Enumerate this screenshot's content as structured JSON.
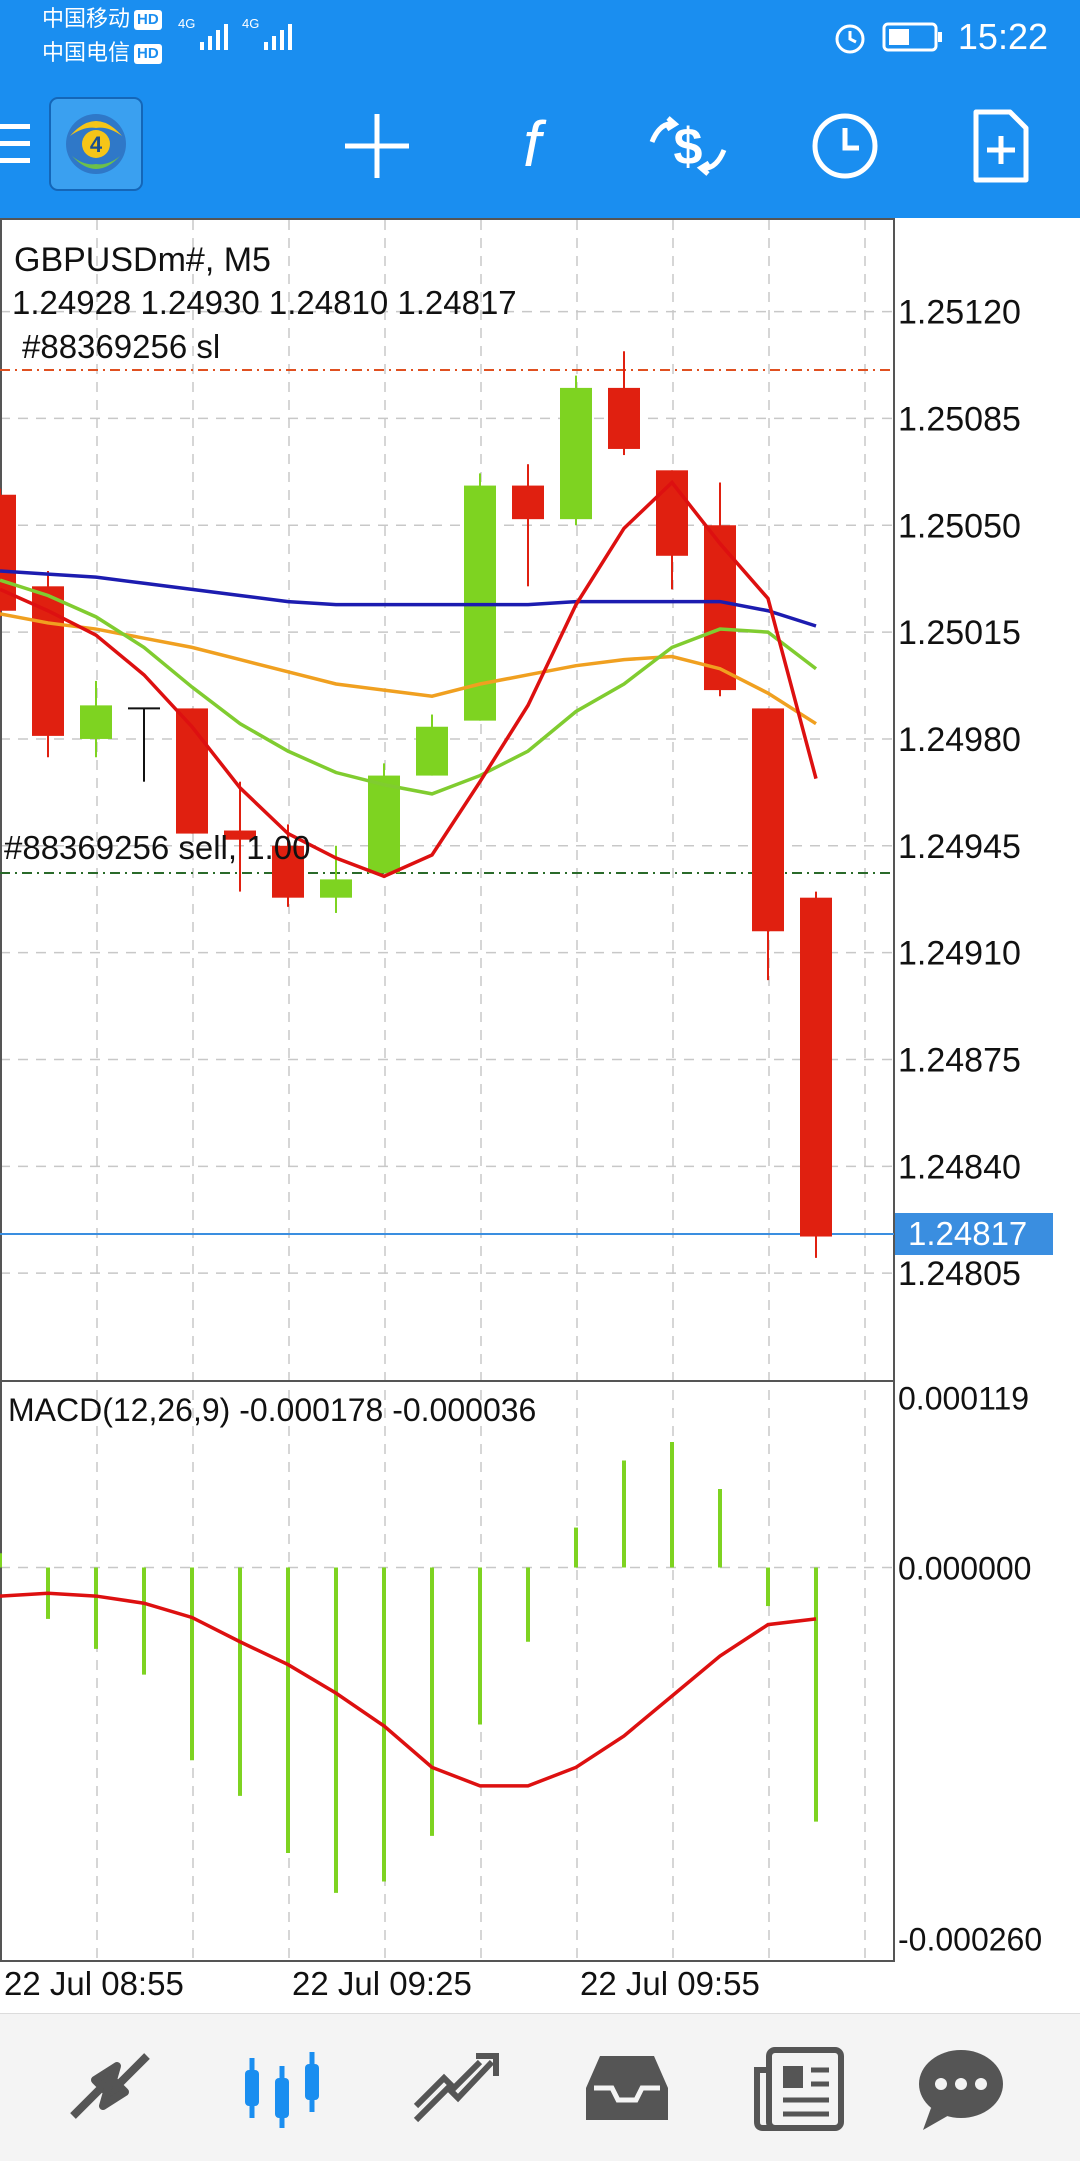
{
  "status_bar": {
    "carrier1": "中国移动",
    "carrier2": "中国电信",
    "hd_badge": "HD",
    "network": "4G",
    "time": "15:22"
  },
  "toolbar": {
    "icons": [
      "menu-icon",
      "metatrader-logo",
      "crosshair-icon",
      "indicators-icon",
      "trade-icon",
      "timeframe-icon",
      "new-order-icon"
    ]
  },
  "chart": {
    "symbol_title": "GBPUSDm#, M5",
    "ohlc": "1.24928 1.24930 1.24810 1.24817",
    "sl_label": "#88369256 sl",
    "order_label": "#88369256 sell, 1.00",
    "current_price": "1.24817",
    "price_ticks": [
      "1.25120",
      "1.25085",
      "1.25050",
      "1.25015",
      "1.24980",
      "1.24945",
      "1.24910",
      "1.24875",
      "1.24840",
      "1.24805"
    ],
    "macd_label": "MACD(12,26,9) -0.000178 -0.000036",
    "macd_ticks": [
      "0.000119",
      "0.000000",
      "-0.000260"
    ],
    "time_labels": [
      "22 Jul 08:55",
      "22 Jul 09:25",
      "22 Jul 09:55"
    ],
    "colors": {
      "bull": "#7ed321",
      "bear": "#e02010",
      "ma_blue": "#1c1cb0",
      "ma_orange": "#f0a020",
      "ma_green": "#80cc30",
      "ma_red": "#dd1010",
      "sl_line": "#e05020",
      "order_line": "#2a6a2a",
      "bid_line": "#3a8ee0"
    },
    "price_range": [
      1.2477,
      1.2515
    ],
    "candles": [
      {
        "o": 1.2506,
        "h": 1.25062,
        "l": 1.2502,
        "c": 1.25022
      },
      {
        "o": 1.2503,
        "h": 1.25035,
        "l": 1.24974,
        "c": 1.24981
      },
      {
        "o": 1.2498,
        "h": 1.24999,
        "l": 1.24974,
        "c": 1.24991
      },
      {
        "o": 1.2499,
        "h": 1.2499,
        "l": 1.24966,
        "c": 1.2499
      },
      {
        "o": 1.2499,
        "h": 1.2499,
        "l": 1.24949,
        "c": 1.24949
      },
      {
        "o": 1.2495,
        "h": 1.24966,
        "l": 1.2493,
        "c": 1.24947
      },
      {
        "o": 1.24945,
        "h": 1.24952,
        "l": 1.24925,
        "c": 1.24928
      },
      {
        "o": 1.24928,
        "h": 1.24945,
        "l": 1.24923,
        "c": 1.24934
      },
      {
        "o": 1.24936,
        "h": 1.24972,
        "l": 1.24936,
        "c": 1.24968
      },
      {
        "o": 1.24968,
        "h": 1.24988,
        "l": 1.24968,
        "c": 1.24984
      },
      {
        "o": 1.24986,
        "h": 1.25067,
        "l": 1.24986,
        "c": 1.25063
      },
      {
        "o": 1.25063,
        "h": 1.2507,
        "l": 1.2503,
        "c": 1.25052
      },
      {
        "o": 1.25052,
        "h": 1.25099,
        "l": 1.2505,
        "c": 1.25095
      },
      {
        "o": 1.25095,
        "h": 1.25107,
        "l": 1.25073,
        "c": 1.25075
      },
      {
        "o": 1.25068,
        "h": 1.25068,
        "l": 1.25029,
        "c": 1.2504
      },
      {
        "o": 1.2505,
        "h": 1.25064,
        "l": 1.24994,
        "c": 1.24996
      },
      {
        "o": 1.2499,
        "h": 1.2499,
        "l": 1.24901,
        "c": 1.24917
      },
      {
        "o": 1.24928,
        "h": 1.2493,
        "l": 1.2481,
        "c": 1.24817
      }
    ],
    "ma_blue": [
      1.25035,
      1.25034,
      1.25033,
      1.25031,
      1.25029,
      1.25027,
      1.25025,
      1.25024,
      1.25024,
      1.25024,
      1.25024,
      1.25024,
      1.25025,
      1.25025,
      1.25025,
      1.25025,
      1.25022,
      1.25017
    ],
    "ma_orange": [
      1.25021,
      1.25018,
      1.25016,
      1.25013,
      1.2501,
      1.25006,
      1.25002,
      1.24998,
      1.24996,
      1.24994,
      1.24998,
      1.25001,
      1.25004,
      1.25006,
      1.25007,
      1.25003,
      1.24995,
      1.24985
    ],
    "ma_green": [
      1.25032,
      1.25027,
      1.2502,
      1.2501,
      1.24997,
      1.24985,
      1.24976,
      1.24969,
      1.24965,
      1.24962,
      1.24968,
      1.24976,
      1.24989,
      1.24998,
      1.2501,
      1.25016,
      1.25015,
      1.25003
    ],
    "ma_red": [
      1.25029,
      1.25022,
      1.25014,
      1.25001,
      1.24984,
      1.24964,
      1.24949,
      1.24941,
      1.24935,
      1.24942,
      1.24966,
      1.24991,
      1.25024,
      1.25049,
      1.25064,
      1.25044,
      1.25026,
      1.24967
    ],
    "macd_range": [
      -0.000275,
      0.00013
    ],
    "macd_hist": [
      1e-05,
      -3.6e-05,
      -5.7e-05,
      -7.5e-05,
      -0.000135,
      -0.00016,
      -0.0002,
      -0.000228,
      -0.00022,
      -0.000188,
      -0.00011,
      -5.2e-05,
      2.8e-05,
      7.5e-05,
      8.8e-05,
      5.5e-05,
      -2.7e-05,
      -0.000178
    ],
    "macd_signal": [
      -2e-05,
      -1.8e-05,
      -2e-05,
      -2.5e-05,
      -3.5e-05,
      -5.2e-05,
      -6.8e-05,
      -8.8e-05,
      -0.000111,
      -0.00014,
      -0.000153,
      -0.000153,
      -0.00014,
      -0.000118,
      -9e-05,
      -6.2e-05,
      -4e-05,
      -3.6e-05
    ]
  },
  "bottom_nav": {
    "items": [
      "quotes-icon",
      "chart-icon",
      "trade-icon",
      "history-icon",
      "news-icon",
      "chat-icon"
    ]
  }
}
